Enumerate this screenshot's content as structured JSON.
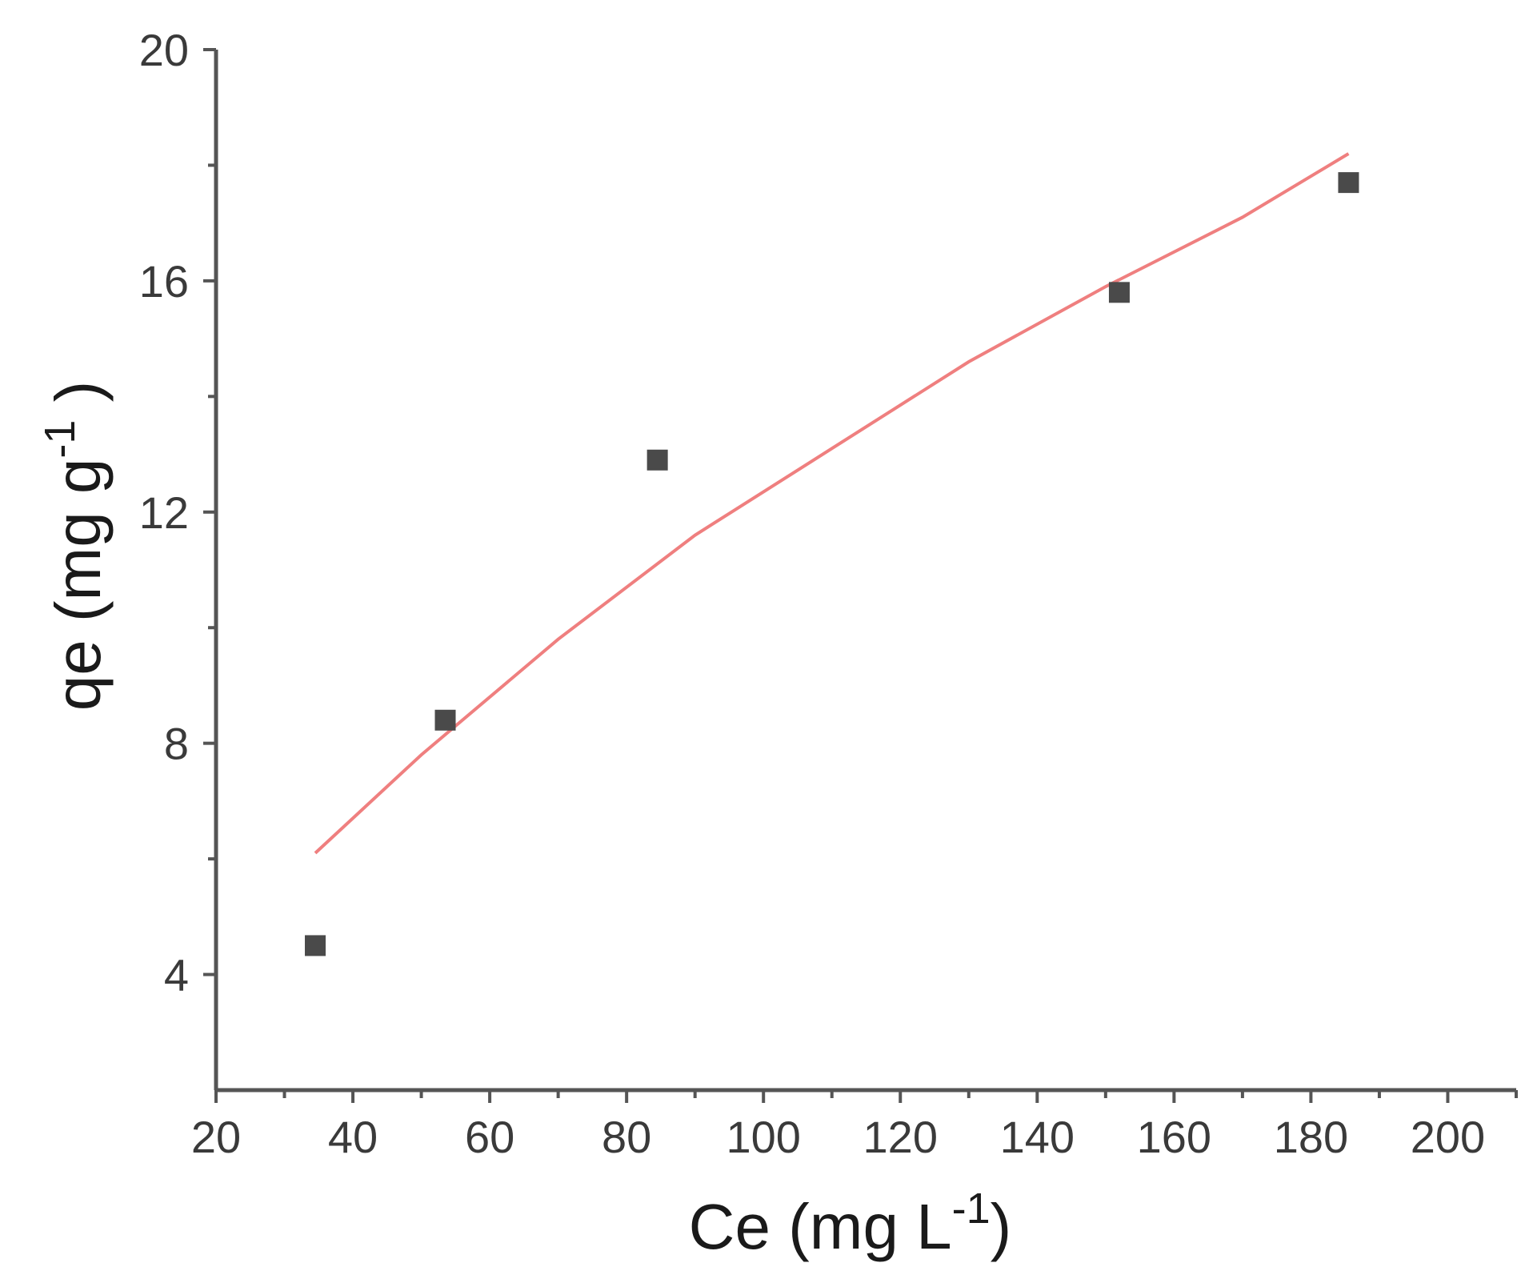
{
  "chart_data": {
    "type": "scatter",
    "xlabel": {
      "base": "Ce (mg L",
      "sup": "-1",
      "end": ")"
    },
    "ylabel": {
      "base": "qe (mg g",
      "sup": "-1",
      "end": " )"
    },
    "xlim": [
      20,
      210
    ],
    "ylim": [
      2,
      20
    ],
    "x_ticks": [
      20,
      40,
      60,
      80,
      100,
      120,
      140,
      160,
      180,
      200
    ],
    "x_minor_ticks": [
      30,
      50,
      70,
      90,
      110,
      130,
      150,
      170,
      190,
      210
    ],
    "y_ticks": [
      4,
      8,
      12,
      16,
      20
    ],
    "y_minor_ticks": [
      6,
      10,
      14,
      18
    ],
    "grid": false,
    "points": [
      {
        "x": 34.5,
        "y": 4.5
      },
      {
        "x": 53.5,
        "y": 8.4
      },
      {
        "x": 84.5,
        "y": 12.9
      },
      {
        "x": 152,
        "y": 15.8
      },
      {
        "x": 185.5,
        "y": 17.7
      }
    ],
    "fit_line": [
      {
        "x": 34.5,
        "y": 6.1
      },
      {
        "x": 50,
        "y": 7.8
      },
      {
        "x": 70,
        "y": 9.8
      },
      {
        "x": 90,
        "y": 11.6
      },
      {
        "x": 110,
        "y": 13.1
      },
      {
        "x": 130,
        "y": 14.6
      },
      {
        "x": 150,
        "y": 15.9
      },
      {
        "x": 170,
        "y": 17.1
      },
      {
        "x": 185.5,
        "y": 18.2
      }
    ],
    "colors": {
      "points": "#4a4a4a",
      "fit_line": "#ef7f7f",
      "axis_titles": "#1a1a1a"
    }
  }
}
